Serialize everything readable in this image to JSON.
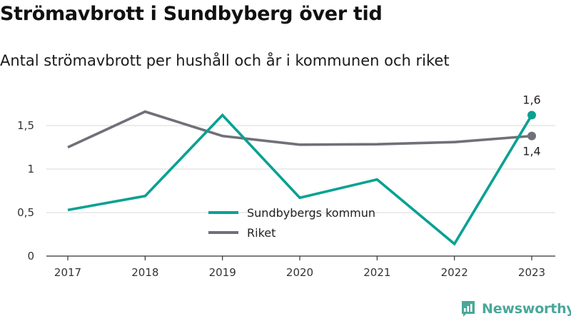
{
  "title": "Strömavbrott i Sundbyberg över tid",
  "subtitle": "Antal strömavbrott per hushåll och år i kommunen och riket",
  "brand": {
    "name": "Newsworthy",
    "icon": "newsworthy-logo-icon",
    "color": "#4aa79a"
  },
  "chart_data": {
    "type": "line",
    "title": "Strömavbrott i Sundbyberg över tid",
    "subtitle": "Antal strömavbrott per hushåll och år i kommunen och riket",
    "xlabel": "",
    "ylabel": "",
    "x": [
      "2017",
      "2018",
      "2019",
      "2020",
      "2021",
      "2022",
      "2023"
    ],
    "ylim": [
      0,
      1.8
    ],
    "yticks": [
      {
        "value": 0,
        "label": "0"
      },
      {
        "value": 0.5,
        "label": "0,5"
      },
      {
        "value": 1,
        "label": "1"
      },
      {
        "value": 1.5,
        "label": "1,5"
      }
    ],
    "grid": true,
    "legend_position": "bottom-center",
    "series": [
      {
        "name": "Sundbybergs kommun",
        "color": "#08a192",
        "values": [
          0.53,
          0.69,
          1.62,
          0.67,
          0.88,
          0.14,
          1.62
        ],
        "end_label": "1,6"
      },
      {
        "name": "Riket",
        "color": "#707078",
        "values": [
          1.25,
          1.66,
          1.38,
          1.28,
          1.285,
          1.31,
          1.38
        ],
        "end_label": "1,4"
      }
    ]
  }
}
